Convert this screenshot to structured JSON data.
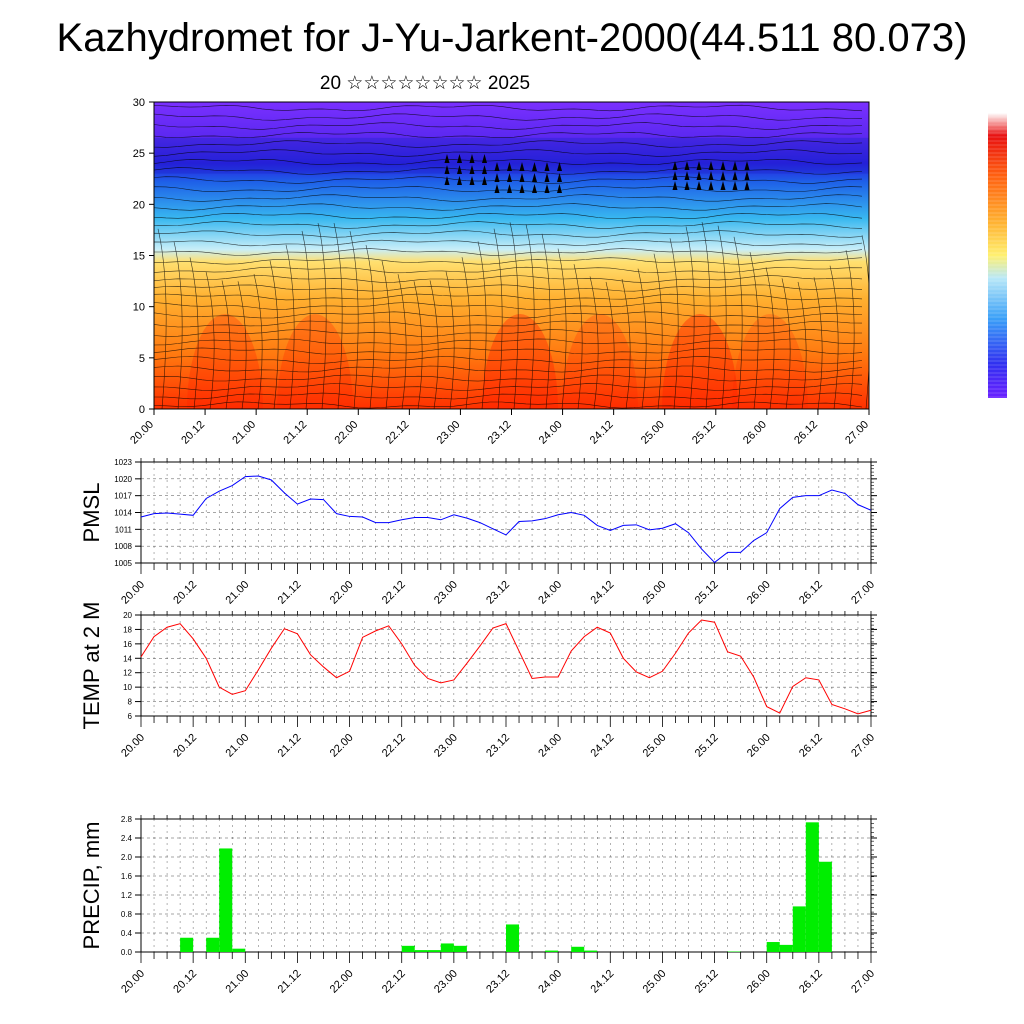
{
  "title": "Kazhydromet for J-Yu-Jarkent-2000(44.511 80.073)",
  "subtitle": "20 ☆☆☆☆☆☆☆☆ 2025",
  "x_tick_labels": [
    "20.00",
    "20.12",
    "21.00",
    "21.12",
    "22.00",
    "22.12",
    "23.00",
    "23.12",
    "24.00",
    "24.12",
    "25.00",
    "25.12",
    "26.00",
    "26.12",
    "27.00"
  ],
  "colors": {
    "pmsl": "#0000ff",
    "temp": "#ff0000",
    "precip": "#00ee00"
  },
  "chart_data": [
    {
      "type": "heatmap",
      "name": "cross-section",
      "title": "",
      "xlabel": "",
      "ylabel": "",
      "ylim": [
        0,
        30
      ],
      "yticks": [
        0,
        5,
        10,
        15,
        20,
        25,
        30
      ],
      "x": [
        "20.00",
        "20.12",
        "21.00",
        "21.12",
        "22.00",
        "22.12",
        "23.00",
        "23.12",
        "24.00",
        "24.12",
        "25.00",
        "25.12",
        "26.00",
        "26.12",
        "27.00"
      ],
      "colorbar": "rainbow (purple-blue-cyan-yellow-orange-red)"
    },
    {
      "type": "line",
      "ylabel": "PMSL",
      "ylim": [
        1005,
        1023
      ],
      "yticks": [
        1005,
        1008,
        1011,
        1014,
        1017,
        1020,
        1023
      ],
      "x_step_hours": 3,
      "values": [
        1013.2,
        1013.8,
        1013.9,
        1013.7,
        1013.5,
        1016.5,
        1017.8,
        1018.8,
        1020.4,
        1020.5,
        1019.8,
        1017.5,
        1015.5,
        1016.4,
        1016.3,
        1013.8,
        1013.3,
        1013.2,
        1012.2,
        1012.2,
        1012.7,
        1013.1,
        1013.1,
        1012.7,
        1013.6,
        1013,
        1012.2,
        1011.1,
        1010.0,
        1012.4,
        1012.5,
        1012.9,
        1013.6,
        1014.0,
        1013.5,
        1011.7,
        1010.8,
        1011.7,
        1011.8,
        1010.9,
        1011.2,
        1012.0,
        1010.4,
        1007.5,
        1005.1,
        1006.9,
        1006.9,
        1009.0,
        1010.4,
        1014.7,
        1016.7,
        1017.0,
        1017.0,
        1018.0,
        1017.4,
        1015.4,
        1014.4
      ]
    },
    {
      "type": "line",
      "ylabel": "TEMP at 2 M",
      "ylim": [
        6,
        20
      ],
      "yticks": [
        6,
        8,
        10,
        12,
        14,
        16,
        18,
        20
      ],
      "x_step_hours": 3,
      "values": [
        14.2,
        17.0,
        18.3,
        18.8,
        16.7,
        14.0,
        10.0,
        9.0,
        9.5,
        12.4,
        15.4,
        18.1,
        17.4,
        14.5,
        12.8,
        11.3,
        12.2,
        16.9,
        17.8,
        18.5,
        16.0,
        13.0,
        11.2,
        10.6,
        11.0,
        13.3,
        15.7,
        18.2,
        18.8,
        15.0,
        11.2,
        11.4,
        11.4,
        15.0,
        17.0,
        18.3,
        17.5,
        14.0,
        12.1,
        11.3,
        12.2,
        14.7,
        17.5,
        19.3,
        19.0,
        14.9,
        14.3,
        11.4,
        7.3,
        6.4,
        10.1,
        11.3,
        11.0,
        7.6,
        7.0,
        6.3,
        6.8
      ]
    },
    {
      "type": "bar",
      "ylabel": "PRECIP, mm",
      "ylim": [
        0,
        2.8
      ],
      "yticks": [
        "0.0",
        "0.4",
        "0.8",
        "1.2",
        "1.6",
        "2.0",
        "2.4",
        "2.8"
      ],
      "x_step_hours": 3,
      "values": [
        0,
        0,
        0,
        0.3,
        0,
        0.3,
        2.18,
        0.07,
        0,
        0,
        0,
        0,
        0,
        0,
        0,
        0,
        0,
        0,
        0,
        0,
        0.13,
        0.04,
        0.04,
        0.18,
        0.13,
        0,
        0,
        0,
        0.58,
        0,
        0,
        0.03,
        0,
        0.11,
        0.03,
        0,
        0,
        0,
        0,
        0,
        0,
        0,
        0,
        0,
        0,
        0.01,
        0,
        0,
        0.21,
        0.15,
        0.96,
        2.73,
        1.9,
        0,
        0,
        0,
        0
      ]
    }
  ]
}
